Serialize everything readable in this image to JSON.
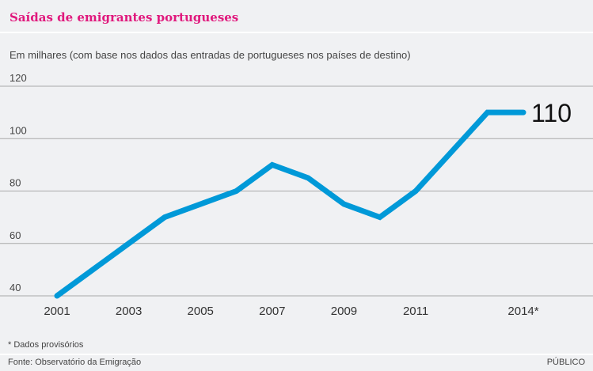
{
  "header": {
    "title": "Saídas de emigrantes portugueses",
    "subtitle": "Em milhares (com base nos dados das entradas de portugueses nos países de destino)"
  },
  "footer": {
    "footnote": "* Dados provisórios",
    "source": "Fonte: Observatório da Emigração",
    "brand": "PÚBLICO"
  },
  "colors": {
    "title": "#e0197d",
    "line": "#0099d8",
    "grid": "#a9a9a9",
    "background": "#f0f1f3"
  },
  "chart_data": {
    "type": "line",
    "title": "Saídas de emigrantes portugueses",
    "subtitle": "Em milhares (com base nos dados das entradas de portugueses nos países de destino)",
    "xlabel": "",
    "ylabel": "",
    "x": [
      2001,
      2002,
      2003,
      2004,
      2005,
      2006,
      2007,
      2008,
      2009,
      2010,
      2011,
      2012,
      2013,
      2014
    ],
    "series": [
      {
        "name": "Saídas de emigrantes",
        "values": [
          40,
          50,
          60,
          70,
          75,
          80,
          90,
          85,
          75,
          70,
          80,
          95,
          110,
          110
        ]
      }
    ],
    "xticks": [
      {
        "value": 2001,
        "label": "2001"
      },
      {
        "value": 2003,
        "label": "2003"
      },
      {
        "value": 2005,
        "label": "2005"
      },
      {
        "value": 2007,
        "label": "2007"
      },
      {
        "value": 2009,
        "label": "2009"
      },
      {
        "value": 2011,
        "label": "2011"
      },
      {
        "value": 2014,
        "label": "2014*"
      }
    ],
    "yticks": [
      40,
      60,
      80,
      100,
      120
    ],
    "ylim": [
      40,
      120
    ],
    "xlim": [
      2001,
      2014
    ],
    "grid": true,
    "annotations": [
      {
        "x": 2014,
        "y": 110,
        "text": "110"
      }
    ]
  }
}
